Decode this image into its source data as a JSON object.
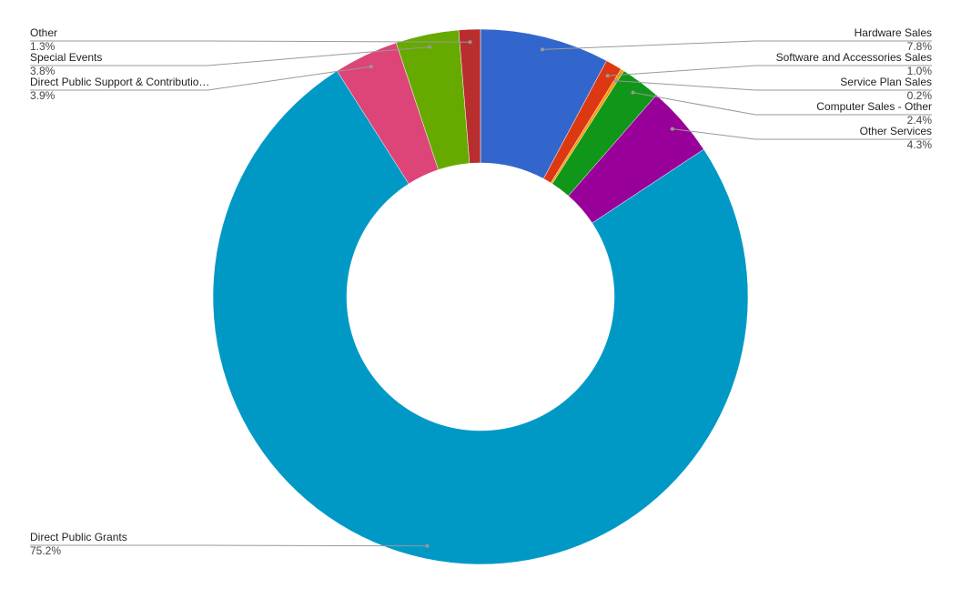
{
  "chart_data": {
    "type": "donut",
    "categories": [
      "Hardware Sales",
      "Software and Accessories Sales",
      "Service Plan Sales",
      "Computer Sales - Other",
      "Other Services",
      "Direct Public Grants",
      "Direct Public Support & Contributio…",
      "Special Events",
      "Other"
    ],
    "values": [
      7.8,
      1.0,
      0.2,
      2.4,
      4.3,
      75.2,
      3.9,
      3.8,
      1.3
    ],
    "value_labels": [
      "7.8%",
      "1.0%",
      "0.2%",
      "2.4%",
      "4.3%",
      "75.2%",
      "3.9%",
      "3.8%",
      "1.3%"
    ],
    "colors": [
      "#3366cc",
      "#dc3912",
      "#ff9900",
      "#109618",
      "#990099",
      "#0099c6",
      "#dd4477",
      "#66aa00",
      "#b82e2e"
    ]
  }
}
